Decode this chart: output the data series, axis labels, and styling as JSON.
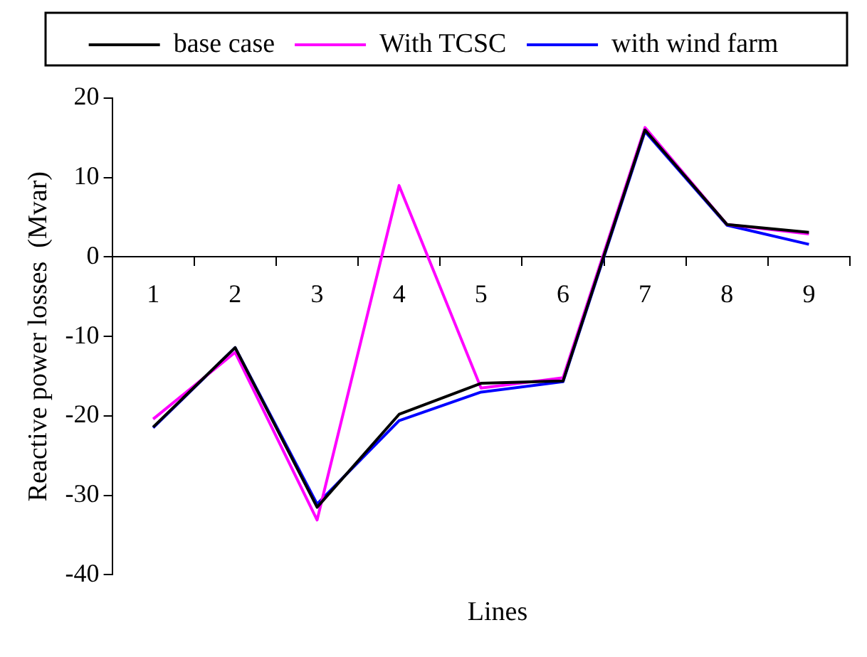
{
  "chart_data": {
    "type": "line",
    "xlabel": "Lines",
    "ylabel": "Reactive power losses  (Mvar)",
    "categories": [
      "1",
      "2",
      "3",
      "4",
      "5",
      "6",
      "7",
      "8",
      "9"
    ],
    "series": [
      {
        "name": "base case",
        "color": "#000000",
        "values": [
          -21.4,
          -11.4,
          -31.5,
          -19.8,
          -15.9,
          -15.6,
          16.0,
          4.1,
          3.1
        ]
      },
      {
        "name": "With TCSC",
        "color": "#ff00ff",
        "values": [
          -20.4,
          -12.0,
          -33.1,
          9.0,
          -16.5,
          -15.2,
          16.3,
          4.1,
          2.9
        ]
      },
      {
        "name": "with wind farm",
        "color": "#0000ff",
        "values": [
          -21.5,
          -11.4,
          -31.1,
          -20.6,
          -17.0,
          -15.7,
          15.8,
          4.0,
          1.6
        ]
      }
    ],
    "ylim": [
      -40,
      20
    ],
    "yticks": [
      -40,
      -30,
      -20,
      -10,
      0,
      10,
      20
    ],
    "grid": false,
    "legend": "top",
    "marker": "none",
    "line_style": "solid"
  }
}
